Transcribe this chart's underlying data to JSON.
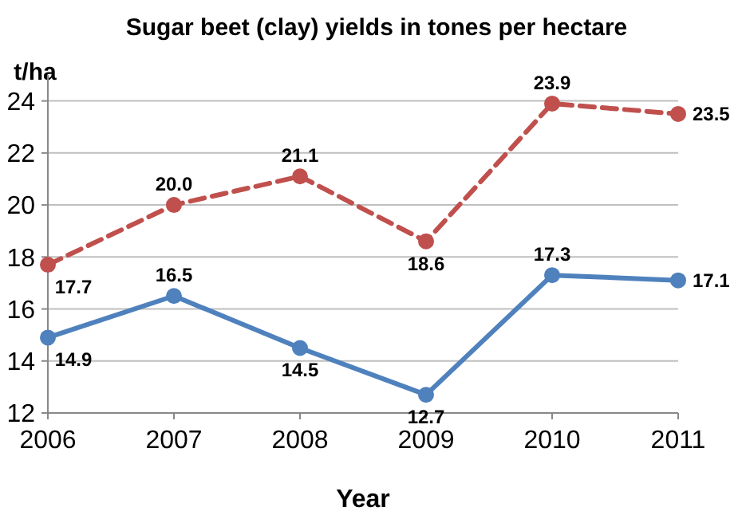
{
  "chart_data": {
    "type": "line",
    "title": "Sugar beet (clay) yields in tones per hectare",
    "xlabel": "Year",
    "ylabel": "t/ha",
    "x": [
      2006,
      2007,
      2008,
      2009,
      2010,
      2011
    ],
    "xlim": [
      2006,
      2011
    ],
    "xticks": [
      2006,
      2007,
      2008,
      2009,
      2010,
      2011
    ],
    "ylim": [
      12,
      25
    ],
    "yticks": [
      12,
      14,
      16,
      18,
      20,
      22,
      24
    ],
    "grid": "y",
    "marker": "circle",
    "series": [
      {
        "color": "#c0504d",
        "line_style": "dashed",
        "values": [
          17.7,
          20.0,
          21.1,
          18.6,
          23.9,
          23.5
        ],
        "value_labels": [
          "17.7",
          "20.0",
          "21.1",
          "18.6",
          "23.9",
          "23.5"
        ]
      },
      {
        "color": "#4f81bd",
        "line_style": "solid",
        "values": [
          14.9,
          16.5,
          14.5,
          12.7,
          17.3,
          17.1
        ],
        "value_labels": [
          "14.9",
          "16.5",
          "14.5",
          "12.7",
          "17.3",
          "17.1"
        ]
      }
    ]
  }
}
